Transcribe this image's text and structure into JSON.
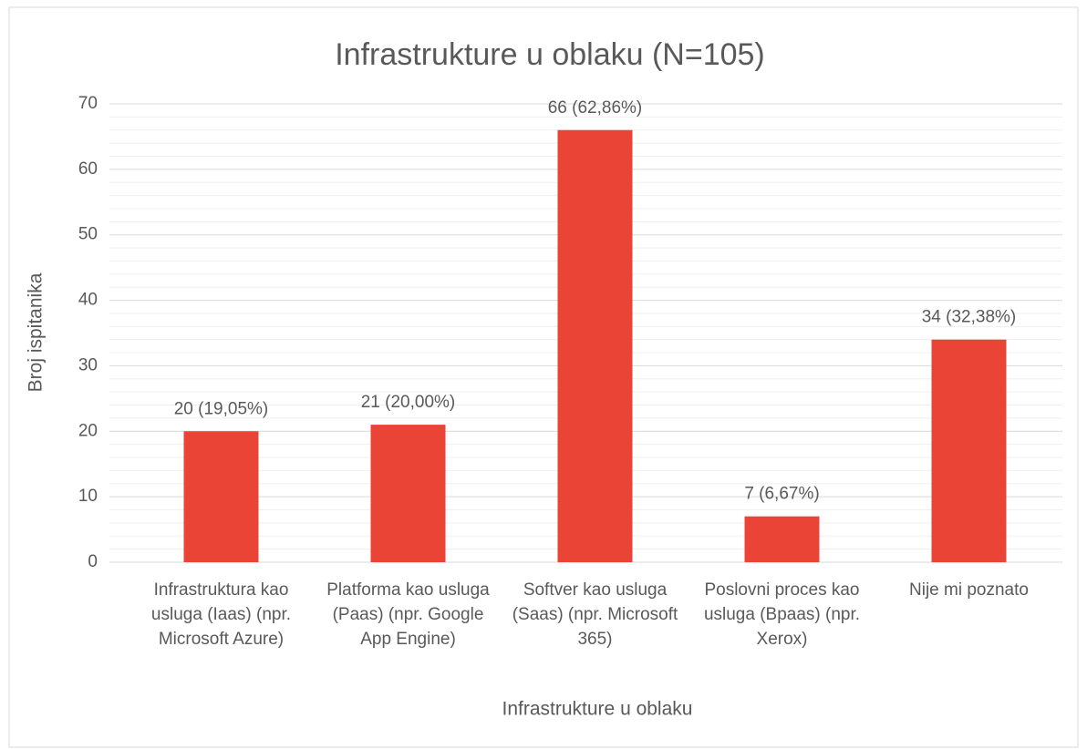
{
  "chart_data": {
    "type": "bar",
    "title": "Infrastrukture u oblaku (N=105)",
    "x_label": "Infrastrukture u oblaku",
    "y_label": "Broj ispitanika",
    "categories": [
      "Infrastruktura kao usluga (Iaas) (npr. Microsoft Azure)",
      "Platforma kao usluga (Paas) (npr. Google App Engine)",
      "Softver kao usluga (Saas) (npr. Microsoft 365)",
      "Poslovni proces kao usluga (Bpaas) (npr. Xerox)",
      "Nije mi poznato"
    ],
    "values": [
      20,
      21,
      66,
      7,
      34
    ],
    "value_labels": [
      "20 (19,05%)",
      "21 (20,00%)",
      "66 (62,86%)",
      "7 (6,67%)",
      "34 (32,38%)"
    ],
    "color": "#e94435",
    "ylim": [
      0,
      70
    ],
    "yticks": [
      0,
      10,
      20,
      30,
      40,
      50,
      60,
      70
    ],
    "yminorticks": [
      2,
      4,
      6,
      8,
      12,
      14,
      16,
      18,
      22,
      24,
      26,
      28,
      32,
      34,
      36,
      38,
      42,
      44,
      46,
      48,
      52,
      54,
      56,
      58,
      62,
      64,
      66,
      68
    ],
    "grid": true
  }
}
